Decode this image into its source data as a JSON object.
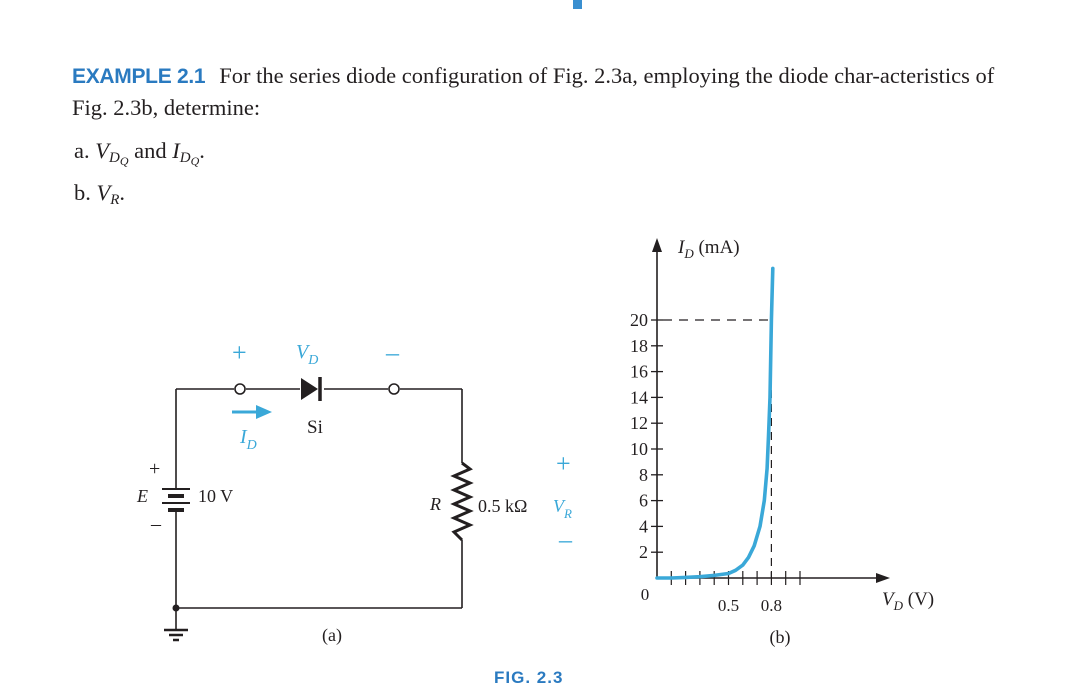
{
  "example": {
    "label": "EXAMPLE 2.1",
    "text": "For the series diode configuration of Fig. 2.3a, employing the diode char-acteristics of Fig. 2.3b, determine:"
  },
  "parts": [
    {
      "letter": "a.",
      "v": "V",
      "vsub": "D",
      "vsubsub": "Q",
      "mid": " and ",
      "i": "I",
      "isub": "D",
      "isubsub": "Q",
      "end": "."
    },
    {
      "letter": "b.",
      "v": "V",
      "vsub": "R",
      "end": "."
    }
  ],
  "circuit": {
    "caption": "(a)",
    "plus_left": "+",
    "minus_right": "–",
    "vd_label": "V",
    "vd_sub": "D",
    "diode_label": "Si",
    "id_label": "I",
    "id_sub": "D",
    "battery_plus": "+",
    "battery_minus": "–",
    "e_label": "E",
    "e_value": "10 V",
    "r_label": "R",
    "r_value": "0.5 kΩ",
    "vr_plus": "+",
    "vr_minus": "–",
    "vr_label": "V",
    "vr_sub": "R"
  },
  "chart_data": {
    "type": "line",
    "caption": "(b)",
    "ylabel_main": "I",
    "ylabel_sub": "D",
    "ylabel_unit": " (mA)",
    "xlabel_main": "V",
    "xlabel_sub": "D",
    "xlabel_unit": " (V)",
    "origin_label": "0",
    "y_ticks": [
      2,
      4,
      6,
      8,
      10,
      12,
      14,
      16,
      18,
      20
    ],
    "x_tick_labels": [
      0.5,
      0.8
    ],
    "xlim": [
      0,
      1.0
    ],
    "ylim": [
      0,
      20
    ],
    "line_color": "#3aa8d8",
    "series": [
      {
        "x": [
          0.0,
          0.1,
          0.2,
          0.3,
          0.4,
          0.5,
          0.55,
          0.6,
          0.64,
          0.68,
          0.72,
          0.75,
          0.77,
          0.78,
          0.79,
          0.8,
          0.81
        ],
        "y": [
          0.0,
          0.0,
          0.05,
          0.1,
          0.2,
          0.35,
          0.6,
          1.0,
          1.6,
          2.5,
          4.0,
          6.0,
          8.5,
          11.0,
          14.0,
          20.0,
          24.0
        ]
      }
    ],
    "dashed_refs": [
      {
        "x": 0.8,
        "y": 20
      }
    ]
  },
  "figure_caption": "FIG. 2.3"
}
